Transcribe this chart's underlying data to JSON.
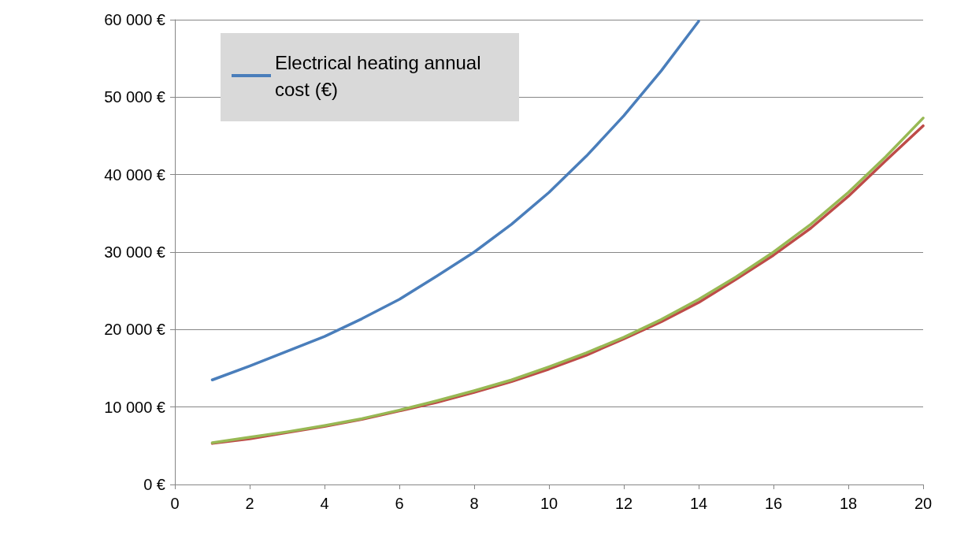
{
  "chart_data": {
    "type": "line",
    "x": [
      1,
      2,
      3,
      4,
      5,
      6,
      7,
      8,
      9,
      10,
      11,
      12,
      13,
      14,
      15,
      16,
      17,
      18,
      19,
      20
    ],
    "series": [
      {
        "name": "Electrical heating annual cost (€)",
        "color": "#4a7ebb",
        "x": [
          1,
          2,
          3,
          4,
          5,
          6,
          7,
          8,
          9,
          10,
          11,
          12,
          13,
          14
        ],
        "values": [
          13500,
          15300,
          17200,
          19100,
          21400,
          23900,
          26900,
          30000,
          33600,
          37700,
          42400,
          47600,
          53400,
          59800
        ]
      },
      {
        "color": "#be4b48",
        "values": [
          5300,
          5900,
          6700,
          7500,
          8400,
          9500,
          10600,
          11900,
          13300,
          14900,
          16700,
          18800,
          21000,
          23500,
          26500,
          29600,
          33100,
          37200,
          41800,
          46300
        ]
      },
      {
        "color": "#98b954",
        "values": [
          5400,
          6100,
          6800,
          7600,
          8500,
          9600,
          10800,
          12100,
          13500,
          15200,
          17000,
          19000,
          21300,
          23900,
          26800,
          30000,
          33600,
          37700,
          42300,
          47300
        ]
      }
    ],
    "xlim": [
      0,
      20
    ],
    "xticks": [
      0,
      2,
      4,
      6,
      8,
      10,
      12,
      14,
      16,
      18,
      20
    ],
    "ylim": [
      0,
      60000
    ],
    "yticks": [
      {
        "value": 0,
        "label": "0 €"
      },
      {
        "value": 10000,
        "label": "10 000 €"
      },
      {
        "value": 20000,
        "label": "20 000 €"
      },
      {
        "value": 30000,
        "label": "30 000 €"
      },
      {
        "value": 40000,
        "label": "40 000 €"
      },
      {
        "value": 50000,
        "label": "50 000 €"
      },
      {
        "value": 60000,
        "label": "60 000 €"
      }
    ],
    "grid": "y",
    "legend": "top left",
    "marker": "none",
    "line_style": "solid"
  }
}
